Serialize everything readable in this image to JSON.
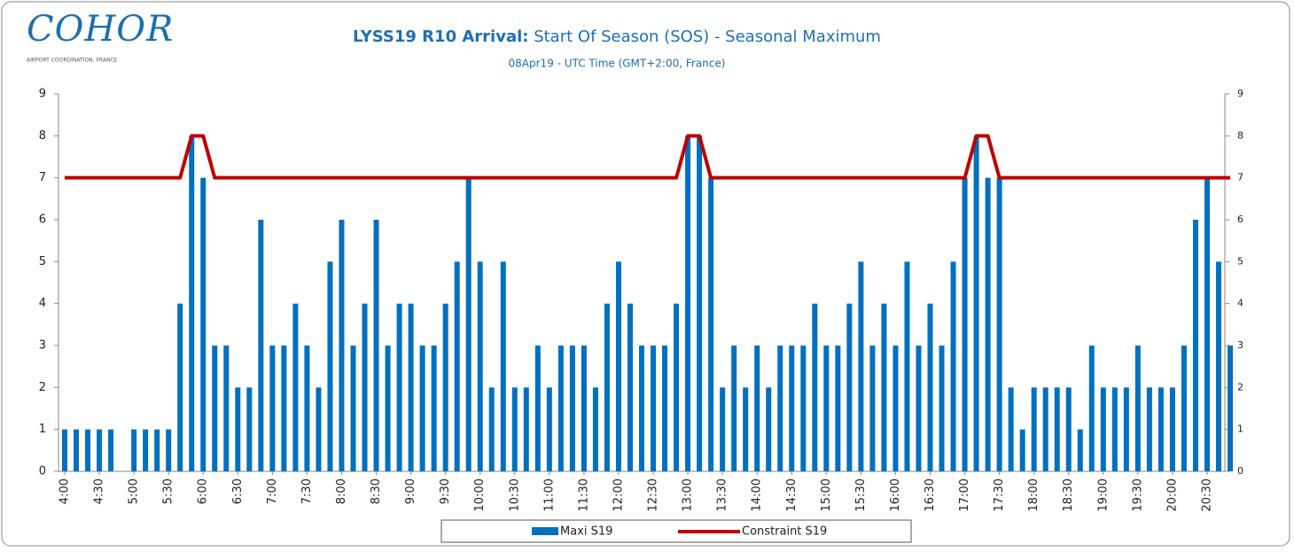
{
  "logo": {
    "name": "COHOR",
    "tagline": "AIRPORT COORDINATION, FRANCE"
  },
  "chart_data": {
    "type": "bar_line",
    "title_parts": [
      "LYSS19 R10 Arrival:",
      "Start Of Season (SOS)  - Seasonal Maximum"
    ],
    "subtitle": "08Apr19 - UTC Time (GMT+2:00, France)",
    "categories": [
      "4:00",
      null,
      null,
      "4:30",
      null,
      null,
      "5:00",
      null,
      null,
      "5:30",
      null,
      null,
      "6:00",
      null,
      null,
      "6:30",
      null,
      null,
      "7:00",
      null,
      null,
      "7:30",
      null,
      null,
      "8:00",
      null,
      null,
      "8:30",
      null,
      null,
      "9:00",
      null,
      null,
      "9:30",
      null,
      null,
      "10:00",
      null,
      null,
      "10:30",
      null,
      null,
      "11:00",
      null,
      null,
      "11:30",
      null,
      null,
      "12:00",
      null,
      null,
      "12:30",
      null,
      null,
      "13:00",
      null,
      null,
      "13:30",
      null,
      null,
      "14:00",
      null,
      null,
      "14:30",
      null,
      null,
      "15:00",
      null,
      null,
      "15:30",
      null,
      null,
      "16:00",
      null,
      null,
      "16:30",
      null,
      null,
      "17:00",
      null,
      null,
      "17:30",
      null,
      null,
      "18:00",
      null,
      null,
      "18:30",
      null,
      null,
      "19:00",
      null,
      null,
      "19:30",
      null,
      null,
      "20:00",
      null,
      null,
      "20:30",
      null,
      null
    ],
    "series": [
      {
        "name": "Maxi S19",
        "kind": "bar",
        "color": "#0070c0",
        "values": [
          1,
          1,
          1,
          1,
          1,
          0,
          1,
          1,
          1,
          1,
          4,
          8,
          7,
          3,
          3,
          2,
          2,
          6,
          3,
          3,
          4,
          3,
          2,
          5,
          6,
          3,
          4,
          6,
          3,
          4,
          4,
          3,
          3,
          4,
          5,
          7,
          5,
          2,
          5,
          2,
          2,
          3,
          2,
          3,
          3,
          3,
          2,
          4,
          5,
          4,
          3,
          3,
          3,
          4,
          8,
          8,
          7,
          2,
          3,
          2,
          3,
          2,
          3,
          3,
          3,
          4,
          3,
          3,
          4,
          5,
          3,
          4,
          3,
          5,
          3,
          4,
          3,
          5,
          7,
          8,
          7,
          7,
          2,
          1,
          2,
          2,
          2,
          2,
          1,
          3,
          2,
          2,
          2,
          3,
          2,
          2,
          2,
          3,
          6,
          7,
          5,
          3
        ]
      },
      {
        "name": "Constraint S19",
        "kind": "line",
        "color": "#c00000",
        "values": [
          7,
          7,
          7,
          7,
          7,
          7,
          7,
          7,
          7,
          7,
          7,
          8,
          8,
          7,
          7,
          7,
          7,
          7,
          7,
          7,
          7,
          7,
          7,
          7,
          7,
          7,
          7,
          7,
          7,
          7,
          7,
          7,
          7,
          7,
          7,
          7,
          7,
          7,
          7,
          7,
          7,
          7,
          7,
          7,
          7,
          7,
          7,
          7,
          7,
          7,
          7,
          7,
          7,
          7,
          8,
          8,
          7,
          7,
          7,
          7,
          7,
          7,
          7,
          7,
          7,
          7,
          7,
          7,
          7,
          7,
          7,
          7,
          7,
          7,
          7,
          7,
          7,
          7,
          7,
          8,
          8,
          7,
          7,
          7,
          7,
          7,
          7,
          7,
          7,
          7,
          7,
          7,
          7,
          7,
          7,
          7,
          7,
          7,
          7,
          7,
          7,
          7
        ]
      }
    ],
    "ylim": [
      0,
      9
    ],
    "yticks": [
      0,
      1,
      2,
      3,
      4,
      5,
      6,
      7,
      8,
      9
    ],
    "y2lim": [
      0,
      9
    ],
    "y2ticks": [
      0,
      1,
      2,
      3,
      4,
      5,
      6,
      7,
      8,
      9
    ],
    "legend": "bottom"
  }
}
